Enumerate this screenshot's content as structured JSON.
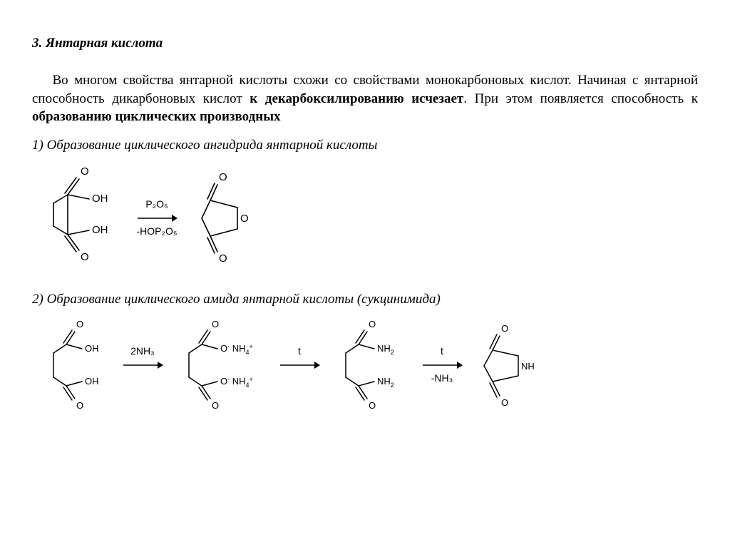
{
  "title": "3. Янтарная кислота",
  "para_parts": [
    {
      "t": "Во многом свойства янтарной кислоты схожи со свойствами монокарбоновых кислот. Начиная с янтарной способность дикарбоновых кислот ",
      "b": false
    },
    {
      "t": "к декарбоксилированию исчезает",
      "b": true
    },
    {
      "t": ". При этом появляется способность к ",
      "b": false
    },
    {
      "t": "образованию циклических производных",
      "b": true
    }
  ],
  "cap1": "1) Образование циклического ангидрида янтарной кислоты",
  "cap2": "2) Образование циклического амида янтарной кислоты (сукцинимида)",
  "r1": {
    "top": "P₂O₅",
    "bot": "-HOP₂O₅"
  },
  "r2": {
    "a1_top": "2NH₃",
    "a1_bot": "",
    "a2_top": "t",
    "a2_bot": "",
    "a3_top": "t",
    "a3_bot": "-NH₃"
  },
  "colors": {
    "line": "#000000"
  }
}
